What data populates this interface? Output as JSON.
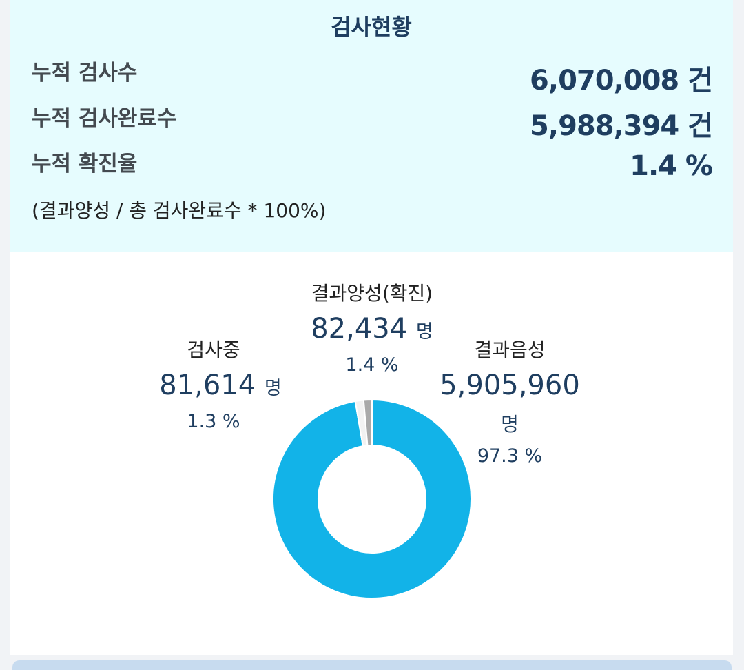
{
  "summary": {
    "title": "검사현황",
    "rows": [
      {
        "label": "누적 검사수",
        "value": "6,070,008 건"
      },
      {
        "label": "누적 검사완료수",
        "value": "5,988,394 건"
      },
      {
        "label": "누적 확진율",
        "value": "1.4 %"
      }
    ],
    "formula": "(결과양성 / 총 검사완료수 * 100%)"
  },
  "colors": {
    "negative": "#12b3e8",
    "positive": "#f2f2f2",
    "testing": "#a9a9a9",
    "summary_bg": "#e6fcfe",
    "text_accent": "#1f3e60"
  },
  "chart_data": {
    "type": "pie",
    "donut": true,
    "title": "",
    "slices": [
      {
        "name": "결과음성",
        "value": 5905960,
        "value_label": "5,905,960",
        "unit": "명",
        "percent_label": "97.3 %",
        "color": "#12b3e8"
      },
      {
        "name": "결과양성(확진)",
        "value": 82434,
        "value_label": "82,434",
        "unit": "명",
        "percent_label": "1.4 %",
        "color": "#f2f2f2"
      },
      {
        "name": "검사중",
        "value": 81614,
        "value_label": "81,614",
        "unit": "명",
        "percent_label": "1.3 %",
        "color": "#a9a9a9"
      }
    ]
  }
}
